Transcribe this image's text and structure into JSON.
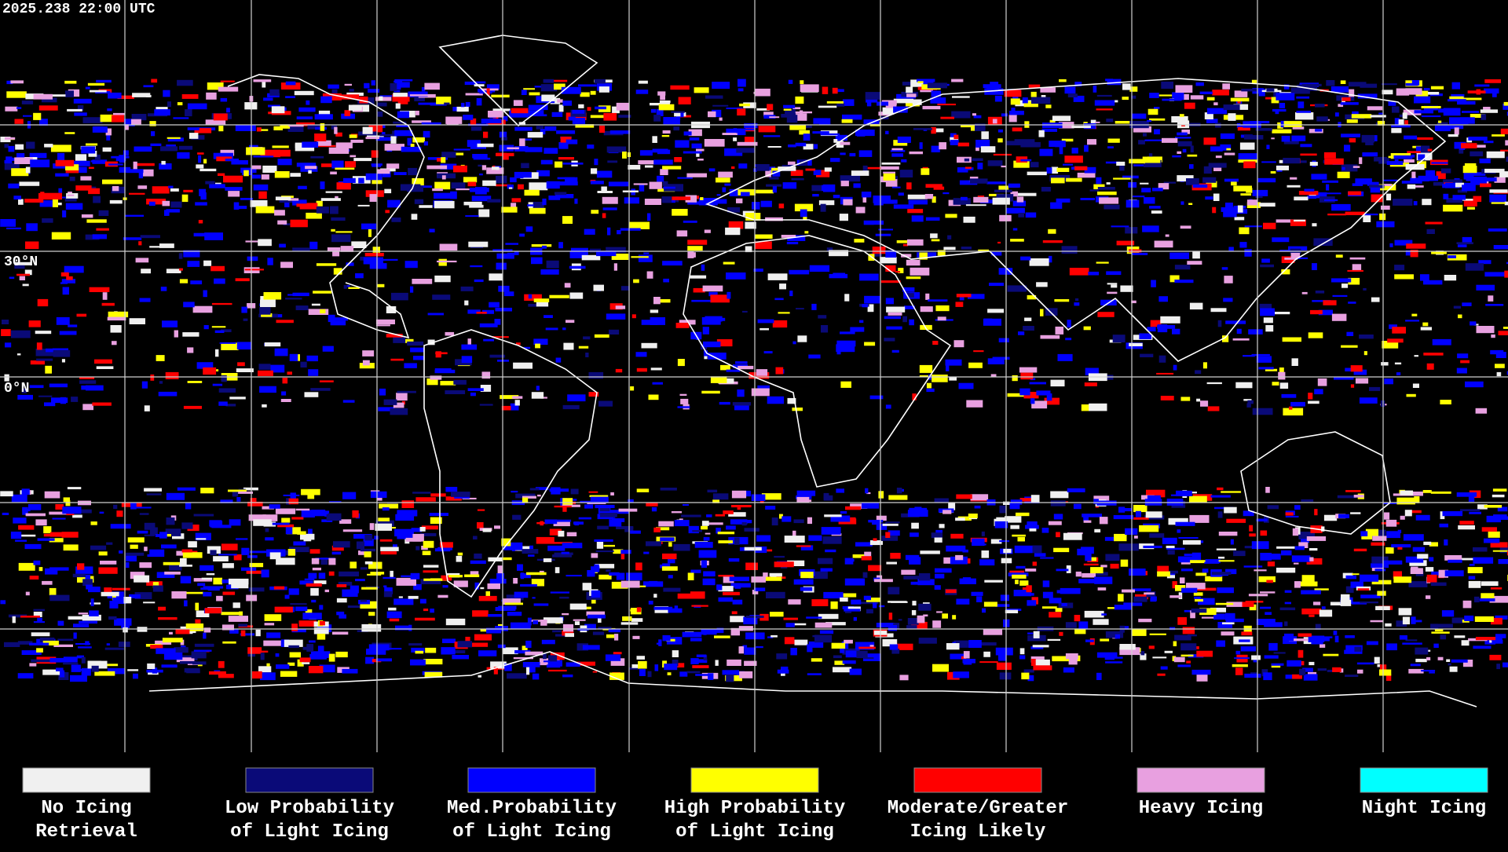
{
  "header": {
    "timestamp": "2025.238 22:00 UTC"
  },
  "map": {
    "latitude_labels": [
      "30°N",
      "0°N"
    ]
  },
  "legend": [
    {
      "lines": [
        "No Icing",
        "Retrieval"
      ],
      "color": "#f0f0f0"
    },
    {
      "lines": [
        "Low Probability",
        "of Light Icing"
      ],
      "color": "#0a0a78"
    },
    {
      "lines": [
        "Med.Probability",
        "of Light Icing"
      ],
      "color": "#0000ff"
    },
    {
      "lines": [
        "High Probability",
        "of Light Icing"
      ],
      "color": "#ffff00"
    },
    {
      "lines": [
        "Moderate/Greater",
        "Icing Likely"
      ],
      "color": "#ff0000"
    },
    {
      "lines": [
        "Heavy Icing"
      ],
      "color": "#e8a0e0"
    },
    {
      "lines": [
        "Night Icing"
      ],
      "color": "#00ffff"
    }
  ]
}
